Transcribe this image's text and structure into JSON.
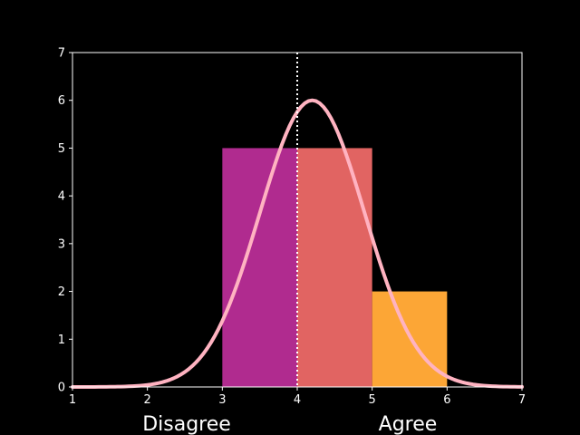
{
  "chart_data": {
    "type": "bar",
    "background": "#000000",
    "xlim": [
      1,
      7
    ],
    "ylim": [
      0,
      7
    ],
    "xticks": [
      "1",
      "2",
      "3",
      "4",
      "5",
      "6",
      "7"
    ],
    "yticks": [
      "0",
      "1",
      "2",
      "3",
      "4",
      "5",
      "6",
      "7"
    ],
    "grid": false,
    "bars": [
      {
        "x_start": 3,
        "x_end": 4,
        "value": 5,
        "color": "#B02B8F"
      },
      {
        "x_start": 4,
        "x_end": 5,
        "value": 5,
        "color": "#E16462"
      },
      {
        "x_start": 5,
        "x_end": 6,
        "value": 2,
        "color": "#FCA636"
      }
    ],
    "curve": {
      "type": "normal",
      "mean": 4.2,
      "peak": 6,
      "sd": 0.7,
      "color": "#FFB3C1"
    },
    "reference_line": {
      "x": 4,
      "style": "dotted",
      "color": "#ffffff"
    },
    "scale_labels": {
      "left": "Disagree",
      "right": "Agree"
    }
  }
}
